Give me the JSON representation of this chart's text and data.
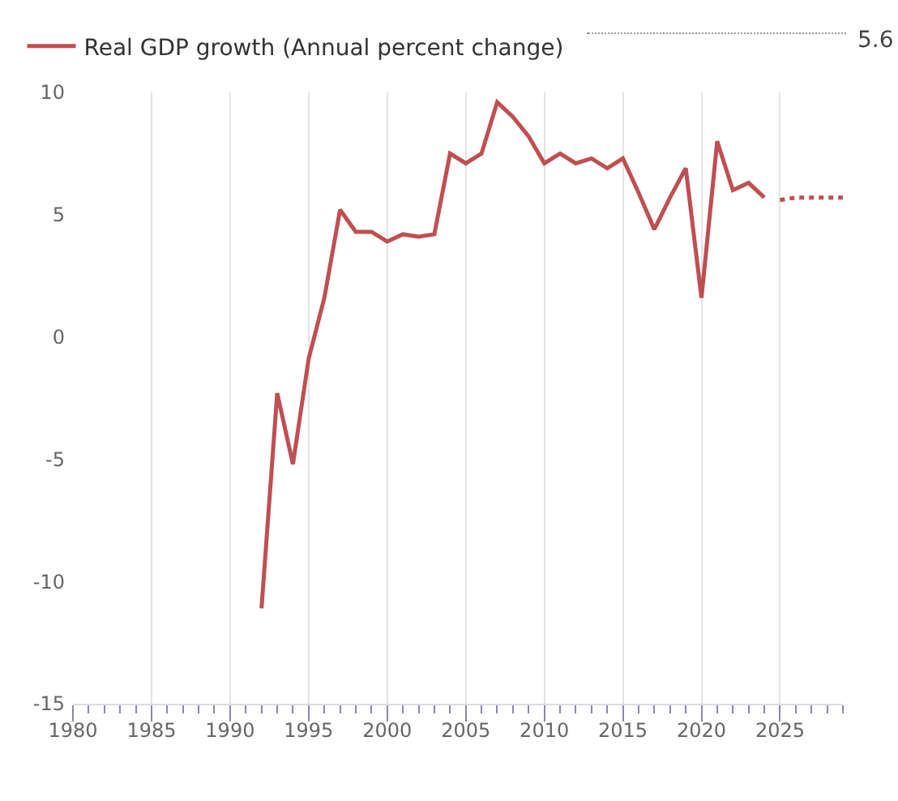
{
  "chart_data": {
    "type": "line",
    "x": [
      1992,
      1993,
      1994,
      1995,
      1996,
      1997,
      1998,
      1999,
      2000,
      2001,
      2002,
      2003,
      2004,
      2005,
      2006,
      2007,
      2008,
      2009,
      2010,
      2011,
      2012,
      2013,
      2014,
      2015,
      2016,
      2017,
      2018,
      2019,
      2020,
      2021,
      2022,
      2023,
      2024
    ],
    "series": [
      {
        "name": "Real GDP growth (Annual percent change)",
        "color": "#bf4f51",
        "line_style": "solid",
        "values": [
          -11.1,
          -2.3,
          -5.2,
          -0.9,
          1.6,
          5.2,
          4.3,
          4.3,
          3.9,
          4.2,
          4.1,
          4.2,
          7.5,
          7.1,
          7.5,
          9.6,
          9.0,
          8.2,
          7.1,
          7.5,
          7.1,
          7.3,
          6.9,
          7.3,
          5.9,
          4.4,
          5.7,
          6.9,
          1.6,
          8.0,
          6.0,
          6.3,
          5.7
        ]
      },
      {
        "color": "#bf4f51",
        "line_style": "dotted",
        "x": [
          2025,
          2026,
          2027,
          2028,
          2029
        ],
        "values": [
          5.6,
          5.7,
          5.7,
          5.7,
          5.7
        ]
      }
    ],
    "annotations": [
      "5.6"
    ],
    "xlim": [
      1980,
      2029
    ],
    "xticks": [
      1980,
      {
        "value": 1981,
        "label": null
      },
      {
        "value": 1982,
        "label": null
      },
      {
        "value": 1983,
        "label": null
      },
      {
        "value": 1984,
        "label": null
      },
      1985,
      {
        "value": 1986,
        "label": null
      },
      {
        "value": 1987,
        "label": null
      },
      {
        "value": 1988,
        "label": null
      },
      {
        "value": 1989,
        "label": null
      },
      1990,
      {
        "value": 1991,
        "label": null
      },
      {
        "value": 1992,
        "label": null
      },
      {
        "value": 1993,
        "label": null
      },
      {
        "value": 1994,
        "label": null
      },
      1995,
      {
        "value": 1996,
        "label": null
      },
      {
        "value": 1997,
        "label": null
      },
      {
        "value": 1998,
        "label": null
      },
      {
        "value": 1999,
        "label": null
      },
      2000,
      {
        "value": 2001,
        "label": null
      },
      {
        "value": 2002,
        "label": null
      },
      {
        "value": 2003,
        "label": null
      },
      {
        "value": 2004,
        "label": null
      },
      2005,
      {
        "value": 2006,
        "label": null
      },
      {
        "value": 2007,
        "label": null
      },
      {
        "value": 2008,
        "label": null
      },
      {
        "value": 2009,
        "label": null
      },
      2010,
      {
        "value": 2011,
        "label": null
      },
      {
        "value": 2012,
        "label": null
      },
      {
        "value": 2013,
        "label": null
      },
      {
        "value": 2014,
        "label": null
      },
      2015,
      {
        "value": 2016,
        "label": null
      },
      {
        "value": 2017,
        "label": null
      },
      {
        "value": 2018,
        "label": null
      },
      {
        "value": 2019,
        "label": null
      },
      2020,
      {
        "value": 2021,
        "label": null
      },
      {
        "value": 2022,
        "label": null
      },
      {
        "value": 2023,
        "label": null
      },
      {
        "value": 2024,
        "label": null
      },
      2025,
      {
        "value": 2026,
        "label": null
      },
      {
        "value": 2027,
        "label": null
      },
      {
        "value": 2028,
        "label": null
      },
      {
        "value": 2029,
        "label": null
      }
    ],
    "ylim": [
      -15,
      10
    ],
    "yticks": [
      -15,
      -10,
      -5,
      0,
      5,
      10
    ],
    "grid": "x",
    "legend": "top left",
    "marker": "none"
  }
}
